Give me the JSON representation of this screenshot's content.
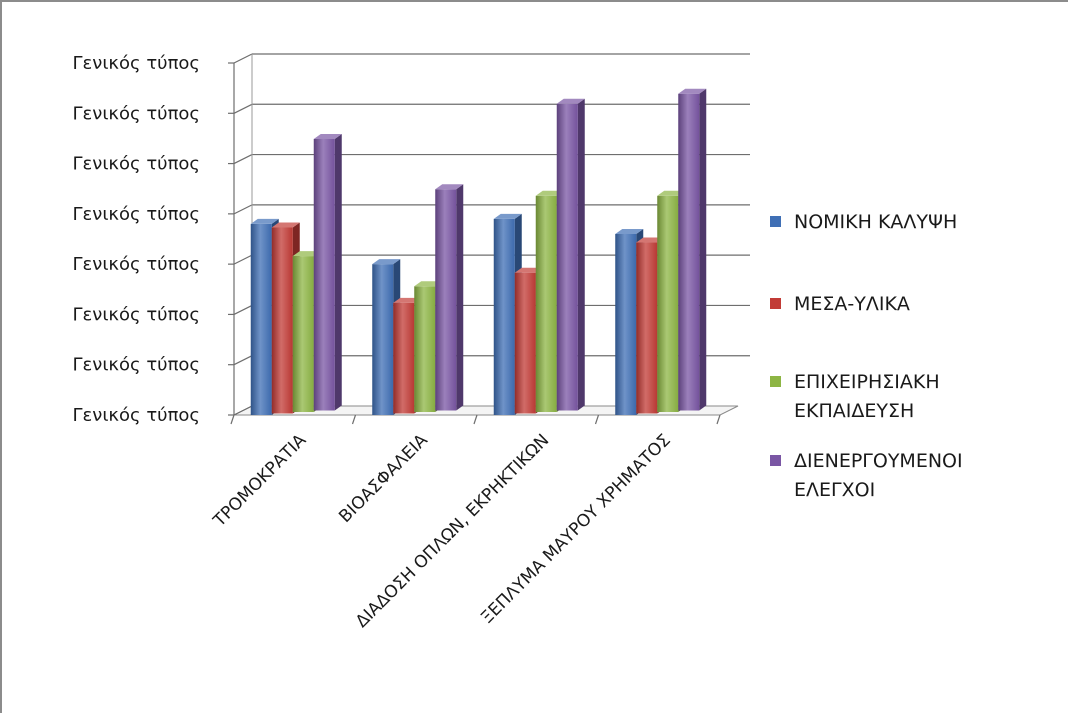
{
  "chart_data": {
    "type": "bar",
    "style": "3d-clustered-column",
    "title": "",
    "xlabel": "",
    "ylabel": "",
    "categories": [
      "ΤΡΟΜΟΚΡΑΤΙΑ",
      "ΒΙΟΑΣΦΑΛΕΙΑ",
      "ΔΙΑΔΟΣΗ ΟΠΛΩΝ, ΕΚΡΗΚΤΙΚΩΝ",
      "ΞΕΠΛΥΜΑ ΜΑΥΡΟΥ ΧΡΗΜΑΤΟΣ"
    ],
    "y_tick_labels": [
      "Γενικός τύπος",
      "Γενικός τύπος",
      "Γενικός τύπος",
      "Γενικός τύπος",
      "Γενικός τύπος",
      "Γενικός τύπος",
      "Γενικός τύπος",
      "Γενικός τύπος"
    ],
    "ylim": [
      0,
      7
    ],
    "grid": true,
    "legend_position": "right",
    "series": [
      {
        "name": "ΝΟΜΙΚΗ ΚΑΛΥΨΗ",
        "lines": [
          "ΝΟΜΙΚΗ ΚΑΛΥΨΗ"
        ],
        "color": "#3f6fb5",
        "values": [
          3.8,
          3.0,
          3.9,
          3.6
        ]
      },
      {
        "name": "ΜΕΣΑ-ΥΛΙΚΑ",
        "lines": [
          "ΜΕΣΑ-ΥΛΙΚΑ"
        ],
        "color": "#c23b36",
        "values": [
          3.7,
          2.2,
          2.8,
          3.4
        ]
      },
      {
        "name": "ΕΠΙΧΕΙΡΗΣΙΑΚΗ ΕΚΠΑΙΔΕΥΣΗ",
        "lines": [
          "ΕΠΙΧΕΙΡΗΣΙΑΚΗ",
          "ΕΚΠΑΙΔΕΥΣΗ"
        ],
        "color": "#8db544",
        "values": [
          3.1,
          2.5,
          4.3,
          4.3
        ]
      },
      {
        "name": "ΔΙΕΝΕΡΓΟΥΜΕΝΟΙ ΕΛΕΓΧΟΙ",
        "lines": [
          "ΔΙΕΝΕΡΓΟΥΜΕΝΟΙ",
          "ΕΛΕΓΧΟΙ"
        ],
        "color": "#7a56a4",
        "values": [
          5.4,
          4.4,
          6.1,
          6.3
        ]
      }
    ]
  }
}
